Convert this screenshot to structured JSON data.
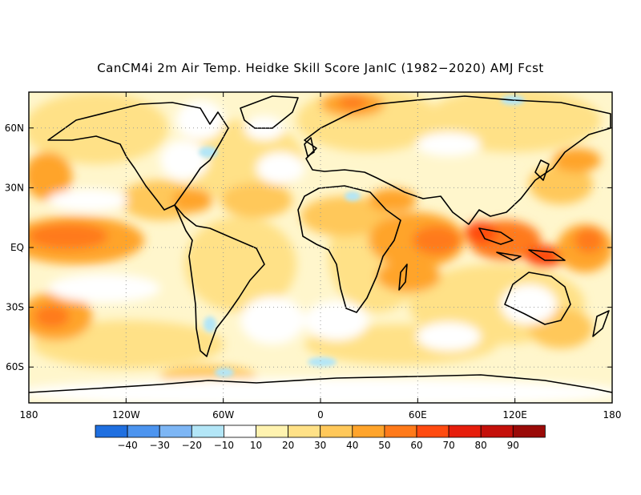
{
  "title": "CanCM4i 2m Air Temp. Heidke Skill Score JanIC (1982−2020) AMJ Fcst",
  "map": {
    "projection": "equirectangular",
    "lon_range": [
      -180,
      180
    ],
    "lat_range": [
      -78,
      78
    ],
    "grid": "dotted",
    "lon_ticks": [
      {
        "value": -180,
        "label": "180"
      },
      {
        "value": -120,
        "label": "120W"
      },
      {
        "value": -60,
        "label": "60W"
      },
      {
        "value": 0,
        "label": "0"
      },
      {
        "value": 60,
        "label": "60E"
      },
      {
        "value": 120,
        "label": "120E"
      },
      {
        "value": 180,
        "label": "180"
      }
    ],
    "lat_ticks": [
      {
        "value": 60,
        "label": "60N"
      },
      {
        "value": 30,
        "label": "30N"
      },
      {
        "value": 0,
        "label": "EQ"
      },
      {
        "value": -30,
        "label": "30S"
      },
      {
        "value": -60,
        "label": "60S"
      }
    ]
  },
  "colorbar": {
    "labels": [
      "−40",
      "−30",
      "−20",
      "−10",
      "10",
      "20",
      "30",
      "40",
      "50",
      "60",
      "70",
      "80",
      "90"
    ],
    "colors": [
      "#1f6fe0",
      "#4c94ef",
      "#7db6f5",
      "#b3e6f7",
      "#ffffff",
      "#fff3b0",
      "#ffe187",
      "#ffc85a",
      "#ffa42b",
      "#ff7a1a",
      "#ff4b10",
      "#e61e0c",
      "#c4100a",
      "#9a0a08"
    ]
  }
}
